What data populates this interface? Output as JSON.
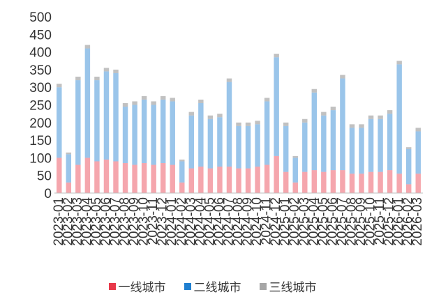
{
  "chart_data": {
    "type": "bar",
    "stacked": true,
    "ylim": [
      0,
      500
    ],
    "yticks": [
      0,
      50,
      100,
      150,
      200,
      250,
      300,
      350,
      400,
      450,
      500
    ],
    "categories": [
      "2023-01",
      "2023-02",
      "2023-03",
      "2023-04",
      "2023-05",
      "2023-06",
      "2023-07",
      "2023-08",
      "2023-09",
      "2023-10",
      "2023-11",
      "2023-12",
      "2024-01",
      "2024-02",
      "2024-03",
      "2024-04",
      "2024-05",
      "2024-06",
      "2024-07",
      "2024-08",
      "2024-09",
      "2024-10",
      "2024-11",
      "2024-12",
      "2025-01",
      "2025-02",
      "2025-03",
      "2025-04",
      "2025-05",
      "2025-06",
      "2025-07",
      "2025-08",
      "2025-09",
      "2025-10",
      "2025-11",
      "2025-12",
      "2026-01",
      "2026-02",
      "2026-03"
    ],
    "series": [
      {
        "name": "一线城市",
        "color": "#e8394a",
        "values": [
          100,
          30,
          80,
          100,
          90,
          95,
          90,
          85,
          80,
          85,
          80,
          85,
          80,
          30,
          70,
          75,
          70,
          75,
          75,
          70,
          70,
          75,
          80,
          105,
          60,
          30,
          60,
          65,
          60,
          65,
          65,
          55,
          55,
          60,
          60,
          65,
          55,
          25,
          55
        ]
      },
      {
        "name": "二线城市",
        "color": "#1f7fd0",
        "values": [
          200,
          80,
          240,
          310,
          230,
          250,
          250,
          160,
          170,
          180,
          170,
          180,
          180,
          60,
          150,
          180,
          140,
          140,
          240,
          120,
          120,
          120,
          180,
          280,
          130,
          70,
          140,
          220,
          160,
          170,
          260,
          130,
          130,
          150,
          150,
          160,
          310,
          100,
          120
        ]
      },
      {
        "name": "三线城市",
        "color": "#a6a6a6",
        "values": [
          10,
          5,
          10,
          10,
          10,
          10,
          10,
          10,
          10,
          10,
          10,
          10,
          10,
          5,
          10,
          10,
          10,
          10,
          10,
          10,
          10,
          10,
          10,
          10,
          10,
          5,
          10,
          10,
          10,
          10,
          10,
          10,
          10,
          10,
          10,
          10,
          10,
          5,
          10
        ]
      }
    ]
  }
}
